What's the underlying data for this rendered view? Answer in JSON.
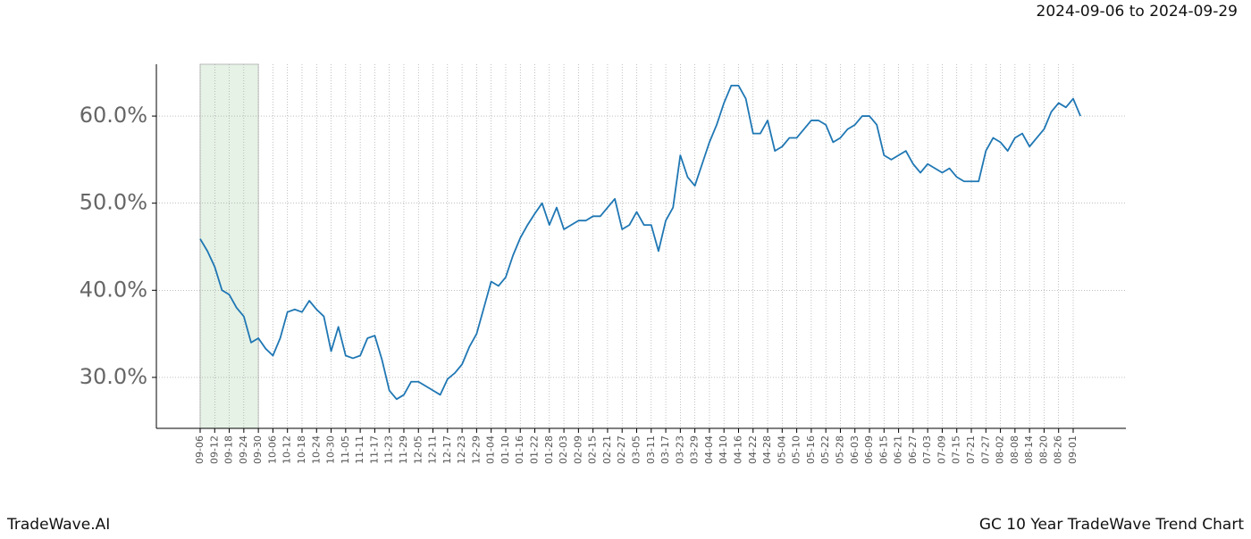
{
  "header": {
    "date_range": "2024-09-06 to 2024-09-29"
  },
  "footer": {
    "left": "TradeWave.AI",
    "right": "GC 10 Year TradeWave Trend Chart"
  },
  "chart_data": {
    "type": "line",
    "categories": [
      "09-06",
      null,
      "09-12",
      null,
      "09-18",
      null,
      "09-24",
      null,
      "09-30",
      null,
      "10-06",
      null,
      "10-12",
      null,
      "10-18",
      null,
      "10-24",
      null,
      "10-30",
      null,
      "11-05",
      null,
      "11-11",
      null,
      "11-17",
      null,
      "11-23",
      null,
      "11-29",
      null,
      "12-05",
      null,
      "12-11",
      null,
      "12-17",
      null,
      "12-23",
      null,
      "12-29",
      null,
      "01-04",
      null,
      "01-10",
      null,
      "01-16",
      null,
      "01-22",
      null,
      "01-28",
      null,
      "02-03",
      null,
      "02-09",
      null,
      "02-15",
      null,
      "02-21",
      null,
      "02-27",
      null,
      "03-05",
      null,
      "03-11",
      null,
      "03-17",
      null,
      "03-23",
      null,
      "03-29",
      null,
      "04-04",
      null,
      "04-10",
      null,
      "04-16",
      null,
      "04-22",
      null,
      "04-28",
      null,
      "05-04",
      null,
      "05-10",
      null,
      "05-16",
      null,
      "05-22",
      null,
      "05-28",
      null,
      "06-03",
      null,
      "06-09",
      null,
      "06-15",
      null,
      "06-21",
      null,
      "06-27",
      null,
      "07-03",
      null,
      "07-09",
      null,
      "07-15",
      null,
      "07-21",
      null,
      "07-27",
      null,
      "08-02",
      null,
      "08-08",
      null,
      "08-14",
      null,
      "08-20",
      null,
      "08-26",
      null,
      "09-01",
      null
    ],
    "series": [
      {
        "color": "#1f77b4",
        "values": [
          45.9,
          44.5,
          42.7,
          40.0,
          39.5,
          38.0,
          37.0,
          34.0,
          34.5,
          33.3,
          32.5,
          34.5,
          37.5,
          37.8,
          37.5,
          38.8,
          37.8,
          37.0,
          33.0,
          35.8,
          32.5,
          32.2,
          32.5,
          34.5,
          34.8,
          32.0,
          28.5,
          27.5,
          28.0,
          29.5,
          29.5,
          29.0,
          28.5,
          28.0,
          29.8,
          30.5,
          31.5,
          33.5,
          35.0,
          38.0,
          41.0,
          40.5,
          41.5,
          44.0,
          46.0,
          47.5,
          48.8,
          50.0,
          47.5,
          49.5,
          47.0,
          47.5,
          48.0,
          48.0,
          48.5,
          48.5,
          49.5,
          50.5,
          47.0,
          47.5,
          49.0,
          47.5,
          47.5,
          44.5,
          48.0,
          49.5,
          55.5,
          53.0,
          52.0,
          54.5,
          57.0,
          59.0,
          61.5,
          63.5,
          63.5,
          62.0,
          58.0,
          58.0,
          59.5,
          56.0,
          56.5,
          57.5,
          57.5,
          58.5,
          59.5,
          59.5,
          59.0,
          57.0,
          57.5,
          58.5,
          59.0,
          60.0,
          60.0,
          59.0,
          55.5,
          55.0,
          55.5,
          56.0,
          54.5,
          53.5,
          54.5,
          54.0,
          53.5,
          54.0,
          53.0,
          52.5,
          52.5,
          52.5,
          56.0,
          57.5,
          57.0,
          56.0,
          57.5,
          58.0,
          56.5,
          57.5,
          58.5,
          60.5,
          61.5,
          61.0,
          62.0,
          60.0
        ]
      }
    ],
    "ylim": [
      24.15,
      65.95
    ],
    "yticks": [
      {
        "value": 30,
        "label": "30.0%"
      },
      {
        "value": 40,
        "label": "40.0%"
      },
      {
        "value": 50,
        "label": "50.0%"
      },
      {
        "value": 60,
        "label": "60.0%"
      }
    ],
    "grid": true,
    "highlight": {
      "from": "09-06",
      "to": "09-30",
      "color": "#e6f2e6"
    }
  }
}
